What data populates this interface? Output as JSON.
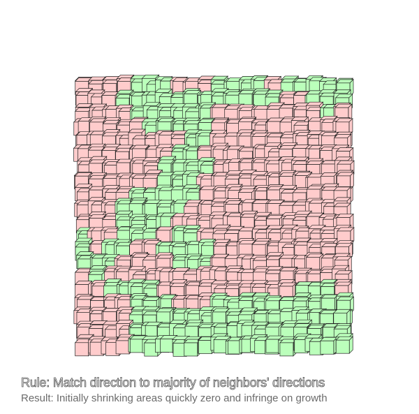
{
  "colors": {
    "pink": "#ffcccc",
    "green": "#bbffbb",
    "outline": "#222222",
    "background": "#ffffff"
  },
  "grid": {
    "cols": 20,
    "rows": 20,
    "cells": [
      "PPPPGGGPPPGGGGPGGGGG",
      "PPPGGGGGGGGGGGGPPGGG",
      "PPPPGGGGGGPPPPPPPPGP",
      "PPPPPGGGGGPPPPPPPPPP",
      "PPPPPPPPGGPPPPPPPPPP",
      "PPPPPPPGGPPPPPPPPPPP",
      "PPPPPPGGGGPPPPPPPPPP",
      "PPPPPPGGGPPPPPPPPPPP",
      "PPPPGGGGGPPPPPPPPPPP",
      "PPPGGGGGPPPPPPPPPPPP",
      "PPPGGGGPPPPPPPPPPPPP",
      "GPPGGGPGGPPPPPPPPPPP",
      "GPGGPPGGGGPPPPPPPPPP",
      "GGGPPPPGGGPPPPPPPPPP",
      "PGPPPPPPPPPPPPPPPPPP",
      "PPGGGGPPPPPPPPPPGGGP",
      "PPPPGGGPPPGGGGGGGGGG",
      "PPPPGGGGGGGGGGGGGGGG",
      "PPPPGGGGGGGGGGGGGGGG",
      "PPPPGGGGGGGGGGGGGGGG"
    ]
  },
  "caption": {
    "rule": "Rule: Match direction to majority of neighbors' directions",
    "result": "Result: Initially shrinking areas quickly zero and infringe on growth"
  }
}
